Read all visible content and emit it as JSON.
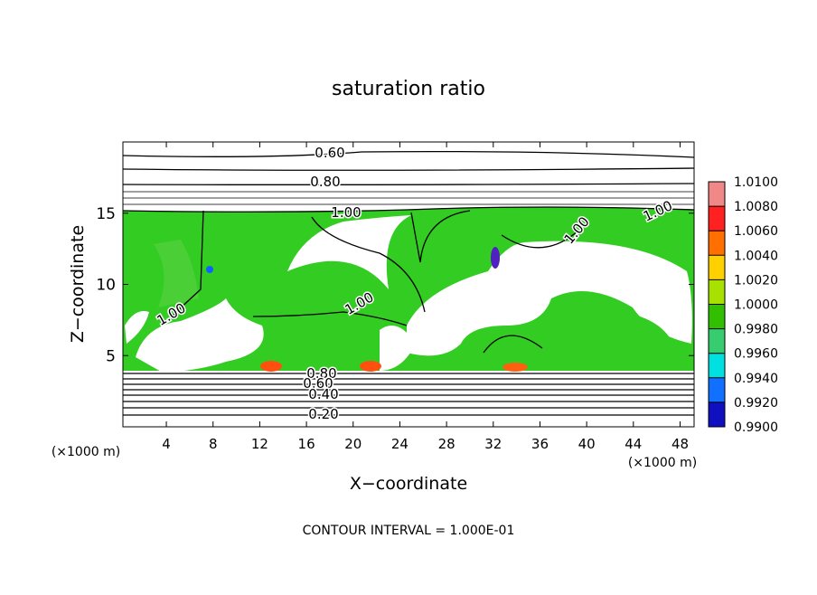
{
  "chart_data": {
    "type": "contour",
    "title": "saturation ratio",
    "xlabel": "X−coordinate",
    "ylabel": "Z−coordinate",
    "xunit": "(×1000 m)",
    "note": "CONTOUR INTERVAL = 1.000E-01",
    "xlim": [
      0.28,
      49.2
    ],
    "ylim": [
      0,
      20
    ],
    "xticks": [
      4,
      8,
      12,
      16,
      20,
      24,
      28,
      32,
      36,
      40,
      44,
      48
    ],
    "yticks": [
      5,
      10,
      15
    ],
    "contour_labels": [
      "0.60",
      "0.80",
      "1.00",
      "1.00",
      "1.00",
      "1.00",
      "1.00",
      "0.80",
      "0.60",
      "0.40",
      "0.20"
    ],
    "colorbar": {
      "ticks": [
        {
          "value": 1.01,
          "label": "1.0100"
        },
        {
          "value": 1.008,
          "label": "1.0080"
        },
        {
          "value": 1.006,
          "label": "1.0060"
        },
        {
          "value": 1.004,
          "label": "1.0040"
        },
        {
          "value": 1.002,
          "label": "1.0020"
        },
        {
          "value": 1,
          "label": "1.0000"
        },
        {
          "value": 0.998,
          "label": "0.9980"
        },
        {
          "value": 0.996,
          "label": "0.9960"
        },
        {
          "value": 0.994,
          "label": "0.9940"
        },
        {
          "value": 0.992,
          "label": "0.9920"
        },
        {
          "value": 0.99,
          "label": "0.9900"
        }
      ],
      "colors": [
        "#f08888",
        "#ff2020",
        "#ff7000",
        "#ffd000",
        "#a8e000",
        "#30c000",
        "#38cc70",
        "#00e0e0",
        "#1070ff",
        "#1010c0"
      ]
    }
  }
}
